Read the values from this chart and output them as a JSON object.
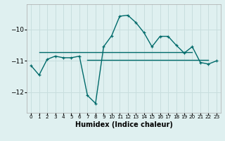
{
  "xlabel": "Humidex (Indice chaleur)",
  "bg_color": "#dff0f0",
  "grid_color": "#c8dede",
  "line_color": "#006b6b",
  "xlim": [
    -0.5,
    23.5
  ],
  "ylim": [
    -12.65,
    -9.2
  ],
  "yticks": [
    -12,
    -11,
    -10
  ],
  "xticks": [
    0,
    1,
    2,
    3,
    4,
    5,
    6,
    7,
    8,
    9,
    10,
    11,
    12,
    13,
    14,
    15,
    16,
    17,
    18,
    19,
    20,
    21,
    22,
    23
  ],
  "xtick_labels": [
    "0",
    "1",
    "2",
    "3",
    "4",
    "5",
    "6",
    "7",
    "8",
    "9",
    "10",
    "11",
    "12",
    "13",
    "14",
    "15",
    "16",
    "17",
    "18",
    "19",
    "20",
    "21",
    "22",
    "23"
  ],
  "main_x": [
    0,
    1,
    2,
    3,
    4,
    5,
    6,
    7,
    8,
    9,
    10,
    11,
    12,
    13,
    14,
    15,
    16,
    17,
    18,
    19,
    20,
    21,
    22,
    23
  ],
  "main_y": [
    -11.15,
    -11.45,
    -10.95,
    -10.85,
    -10.9,
    -10.9,
    -10.85,
    -12.1,
    -12.35,
    -10.55,
    -10.2,
    -9.58,
    -9.55,
    -9.78,
    -10.1,
    -10.55,
    -10.22,
    -10.22,
    -10.5,
    -10.75,
    -10.55,
    -11.05,
    -11.1,
    -11.0
  ],
  "hline_upper_x1": 1,
  "hline_upper_x2": 20,
  "hline_upper_y": -10.72,
  "hline_lower_x1": 7,
  "hline_lower_x2": 22,
  "hline_lower_y": -10.97
}
